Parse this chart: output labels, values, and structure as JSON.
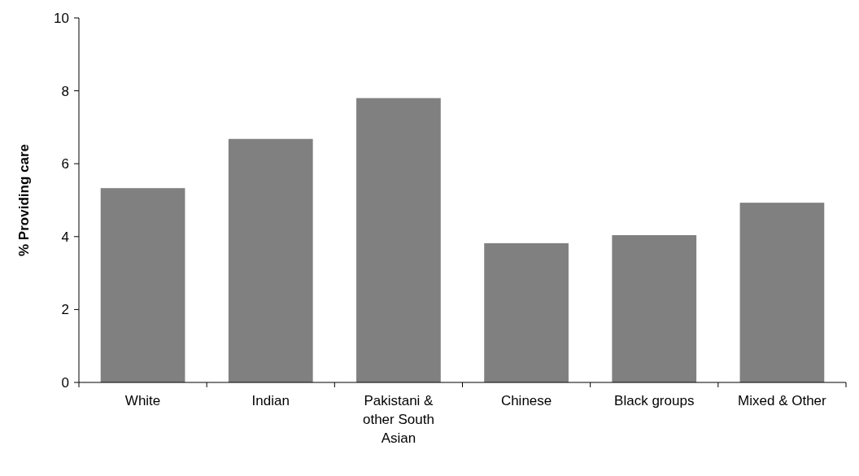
{
  "chart_data": {
    "type": "bar",
    "ylabel": "% Providing care",
    "categories": [
      "White",
      "Indian",
      "Pakistani & other South Asian",
      "Chinese",
      "Black groups",
      "Mixed & Other"
    ],
    "values": [
      5.33,
      6.68,
      7.8,
      3.82,
      4.04,
      4.93
    ],
    "color": "#808080",
    "ylim": [
      0,
      10
    ],
    "yticks": [
      0,
      2,
      4,
      6,
      8,
      10
    ],
    "grid": false
  }
}
